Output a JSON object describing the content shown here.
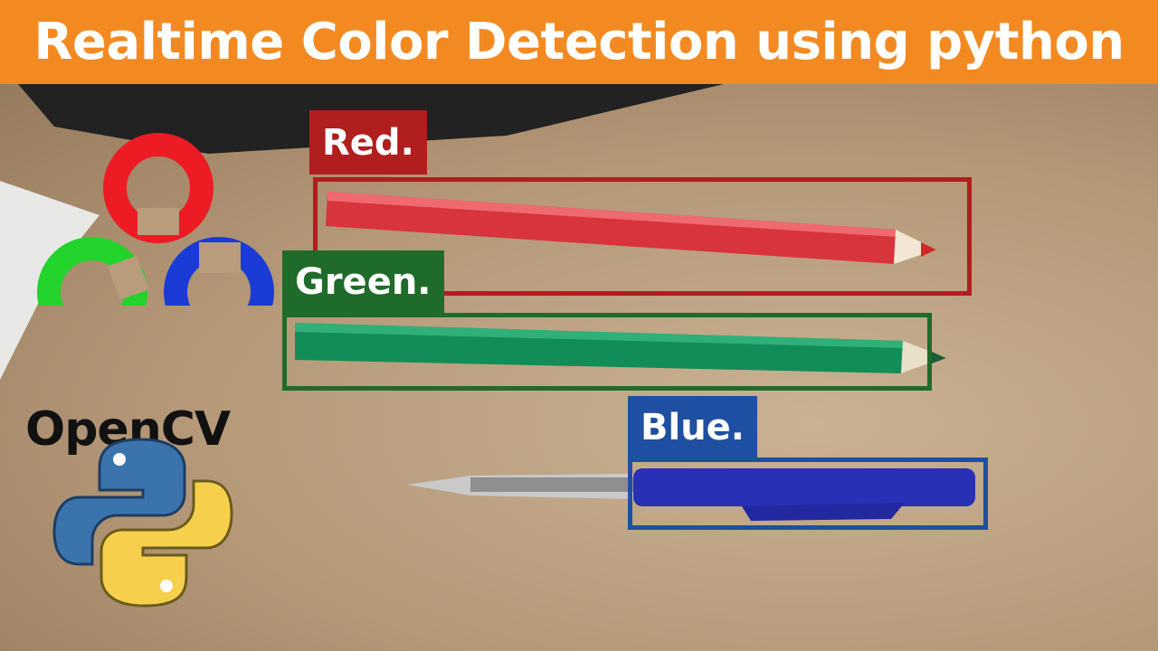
{
  "banner": {
    "title": "Realtime Color Detection using python"
  },
  "logos": {
    "opencv_text": "OpenCV"
  },
  "detections": [
    {
      "label": "Red.",
      "color": "#b01e1e"
    },
    {
      "label": "Green.",
      "color": "#1f6b2a"
    },
    {
      "label": "Blue.",
      "color": "#1f4fa0"
    }
  ],
  "colors": {
    "banner": "#f38a21",
    "red": "#ed1c24",
    "green": "#21d32b",
    "blue": "#1b3bd6"
  }
}
